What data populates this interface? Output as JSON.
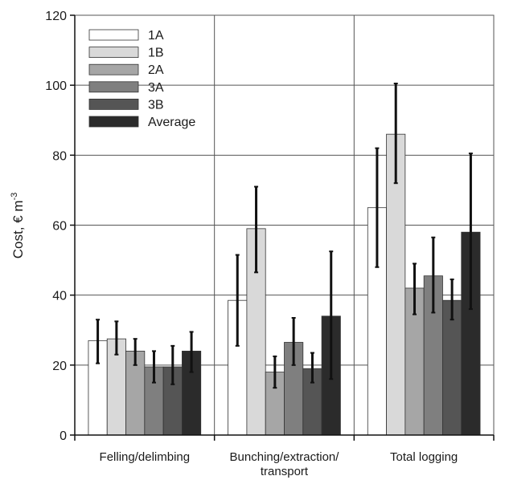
{
  "chart_data": {
    "type": "bar",
    "title": "",
    "ylabel": "Cost, € m⁻³",
    "ylabel_parts": {
      "main": "Cost, € m",
      "sup": "-3"
    },
    "xlabel": "",
    "ylim": [
      0,
      120
    ],
    "yticks": [
      0,
      20,
      40,
      60,
      80,
      100,
      120
    ],
    "grid": true,
    "legend_position": "top-left",
    "categories": [
      "Felling/delimbing",
      "Bunching/extraction/transport",
      "Total logging"
    ],
    "category_label_lines": [
      [
        "Felling/delimbing"
      ],
      [
        "Bunching/extraction/",
        "transport"
      ],
      [
        "Total logging"
      ]
    ],
    "series": [
      {
        "name": "1A",
        "color": "#ffffff",
        "values": [
          27,
          38.5,
          65
        ],
        "error_low": [
          20.5,
          25.5,
          48
        ],
        "error_high": [
          33,
          51.5,
          82
        ]
      },
      {
        "name": "1B",
        "color": "#d9d9d9",
        "values": [
          27.5,
          59,
          86
        ],
        "error_low": [
          23,
          46.5,
          72
        ],
        "error_high": [
          32.5,
          71,
          100.5
        ]
      },
      {
        "name": "2A",
        "color": "#a6a6a6",
        "values": [
          24,
          18,
          42
        ],
        "error_low": [
          20,
          13.5,
          34.5
        ],
        "error_high": [
          27.5,
          22.5,
          49
        ]
      },
      {
        "name": "3A",
        "color": "#7f7f7f",
        "values": [
          19.5,
          26.5,
          45.5
        ],
        "error_low": [
          15,
          20,
          35
        ],
        "error_high": [
          24,
          33.5,
          56.5
        ]
      },
      {
        "name": "3B",
        "color": "#555555",
        "values": [
          19.5,
          19,
          38.5
        ],
        "error_low": [
          14.5,
          15,
          33
        ],
        "error_high": [
          25.5,
          23.5,
          44.5
        ]
      },
      {
        "name": "Average",
        "color": "#2b2b2b",
        "values": [
          24,
          34,
          58
        ],
        "error_low": [
          18,
          16,
          36
        ],
        "error_high": [
          29.5,
          52.5,
          80.5
        ]
      }
    ]
  }
}
